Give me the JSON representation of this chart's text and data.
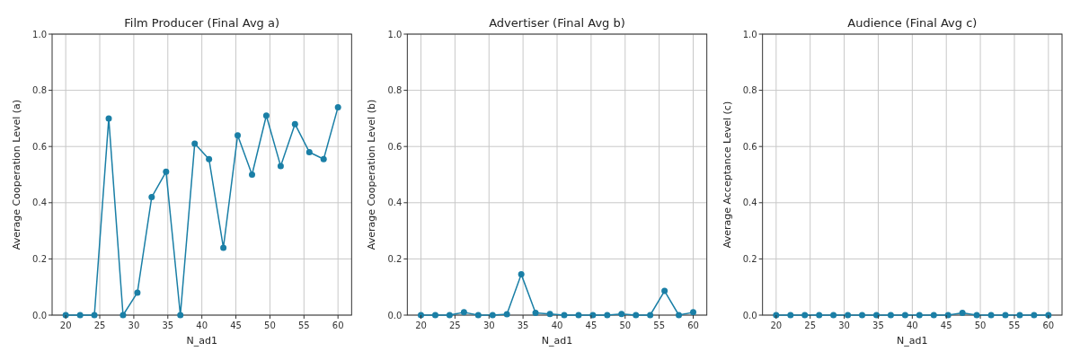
{
  "chart_data": [
    {
      "type": "line",
      "title": "Film Producer (Final Avg a)",
      "xlabel": "N_ad1",
      "ylabel": "Average Cooperation Level (a)",
      "x": [
        20,
        22.11,
        24.21,
        26.32,
        28.42,
        30.53,
        32.63,
        34.74,
        36.84,
        38.95,
        41.05,
        43.16,
        45.26,
        47.37,
        49.47,
        51.58,
        53.68,
        55.79,
        57.89,
        60
      ],
      "series": [
        {
          "color": "#1a7fa6",
          "values": [
            0,
            0,
            0,
            0.7,
            0,
            0.08,
            0.42,
            0.51,
            0,
            0.61,
            0.555,
            0.24,
            0.64,
            0.5,
            0.71,
            0.53,
            0.68,
            0.58,
            0.555,
            0.74
          ]
        }
      ],
      "xlim": [
        18,
        62
      ],
      "ylim": [
        0,
        1
      ],
      "xticks": [
        20,
        25,
        30,
        35,
        40,
        45,
        50,
        55,
        60
      ],
      "yticks": [
        {
          "value": 0,
          "label": "0.0"
        },
        {
          "value": 0.2,
          "label": "0.2"
        },
        {
          "value": 0.4,
          "label": "0.4"
        },
        {
          "value": 0.6,
          "label": "0.6"
        },
        {
          "value": 0.8,
          "label": "0.8"
        },
        {
          "value": 1,
          "label": "1.0"
        }
      ],
      "grid": true,
      "marker": "circle",
      "line_style": "solid"
    },
    {
      "type": "line",
      "title": "Advertiser (Final Avg b)",
      "xlabel": "N_ad1",
      "ylabel": "Average Cooperation Level (b)",
      "x": [
        20,
        22.11,
        24.21,
        26.32,
        28.42,
        30.53,
        32.63,
        34.74,
        36.84,
        38.95,
        41.05,
        43.16,
        45.26,
        47.37,
        49.47,
        51.58,
        53.68,
        55.79,
        57.89,
        60
      ],
      "series": [
        {
          "color": "#1a7fa6",
          "values": [
            0,
            0,
            0,
            0.01,
            0,
            0,
            0.003,
            0.145,
            0.008,
            0.004,
            0,
            0,
            0,
            0,
            0.004,
            0,
            0,
            0.086,
            0,
            0.01
          ]
        }
      ],
      "xlim": [
        18,
        62
      ],
      "ylim": [
        0,
        1
      ],
      "xticks": [
        20,
        25,
        30,
        35,
        40,
        45,
        50,
        55,
        60
      ],
      "yticks": [
        {
          "value": 0,
          "label": "0.0"
        },
        {
          "value": 0.2,
          "label": "0.2"
        },
        {
          "value": 0.4,
          "label": "0.4"
        },
        {
          "value": 0.6,
          "label": "0.6"
        },
        {
          "value": 0.8,
          "label": "0.8"
        },
        {
          "value": 1,
          "label": "1.0"
        }
      ],
      "grid": true,
      "marker": "circle",
      "line_style": "solid"
    },
    {
      "type": "line",
      "title": "Audience (Final Avg c)",
      "xlabel": "N_ad1",
      "ylabel": "Average Acceptance Level (c)",
      "x": [
        20,
        22.11,
        24.21,
        26.32,
        28.42,
        30.53,
        32.63,
        34.74,
        36.84,
        38.95,
        41.05,
        43.16,
        45.26,
        47.37,
        49.47,
        51.58,
        53.68,
        55.79,
        57.89,
        60
      ],
      "series": [
        {
          "color": "#1a7fa6",
          "values": [
            0,
            0,
            0,
            0,
            0,
            0,
            0,
            0,
            0,
            0,
            0,
            0,
            0,
            0.008,
            0,
            0,
            0,
            0,
            0,
            0
          ]
        }
      ],
      "xlim": [
        18,
        62
      ],
      "ylim": [
        0,
        1
      ],
      "xticks": [
        20,
        25,
        30,
        35,
        40,
        45,
        50,
        55,
        60
      ],
      "yticks": [
        {
          "value": 0,
          "label": "0.0"
        },
        {
          "value": 0.2,
          "label": "0.2"
        },
        {
          "value": 0.4,
          "label": "0.4"
        },
        {
          "value": 0.6,
          "label": "0.6"
        },
        {
          "value": 0.8,
          "label": "0.8"
        },
        {
          "value": 1,
          "label": "1.0"
        }
      ],
      "grid": true,
      "marker": "circle",
      "line_style": "solid"
    }
  ]
}
